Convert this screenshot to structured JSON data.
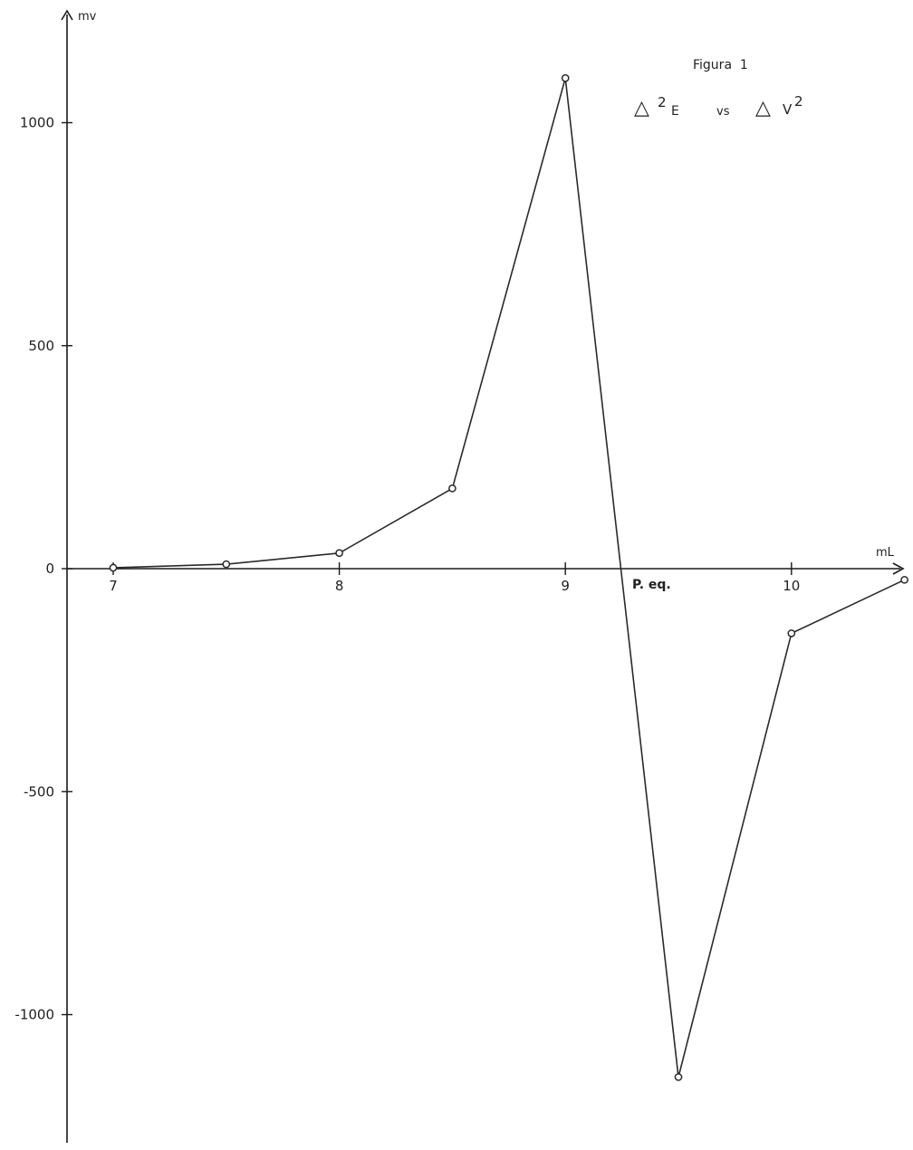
{
  "chart_data": {
    "type": "line",
    "title": "Figura  1",
    "subtitle": {
      "left_symbol": "△",
      "left_sup": "2",
      "left_text": "E",
      "vs": "vs",
      "right_symbol": "△",
      "right_text": "V",
      "right_sup": "2"
    },
    "ylabel": "mv",
    "xlabel": "mL",
    "x_tick_labels": [
      "7",
      "8",
      "9",
      "10"
    ],
    "x_ticks": [
      7,
      8,
      9,
      10
    ],
    "y_tick_labels": [
      "1000",
      "500",
      "0",
      "-500",
      "-1000"
    ],
    "y_ticks": [
      1000,
      500,
      0,
      -500,
      -1000
    ],
    "xlim": [
      6.65,
      10.5
    ],
    "ylim": [
      -1270,
      1230
    ],
    "grid": false,
    "legend": "none",
    "annotations": [
      {
        "text": "P. eq.",
        "x": 9.22,
        "y": 0
      }
    ],
    "series": [
      {
        "x": [
          7.0,
          7.5,
          8.0,
          8.5,
          9.0,
          9.5,
          10.0,
          10.5
        ],
        "y": [
          2,
          10,
          35,
          180,
          1100,
          -1140,
          -145,
          -25
        ]
      }
    ],
    "colors": {
      "line": "#2a2a2a",
      "axis": "#1a1a1a",
      "marker_fill": "#ffffff"
    }
  }
}
